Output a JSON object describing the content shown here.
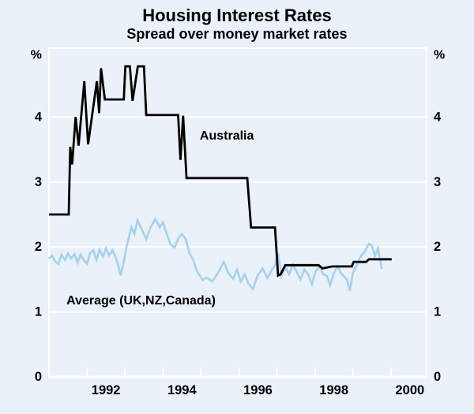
{
  "header": {
    "title": "Housing Interest Rates",
    "subtitle": "Spread over money market rates"
  },
  "chart_data": {
    "type": "line",
    "title": "Housing Interest Rates",
    "subtitle": "Spread over money market rates",
    "background_color": "#eaf1f8",
    "grid_color": "#ffffff",
    "x_range": [
      1991.0,
      2000.94
    ],
    "y_range": [
      0,
      5.06
    ],
    "y_unit_left": "%",
    "y_unit_right": "%",
    "y_tick_labels": [
      "4",
      "3",
      "2",
      "1",
      "0"
    ],
    "y_tick_values": [
      4,
      3,
      2,
      1,
      0
    ],
    "gridline_values": [
      4,
      3,
      2,
      1
    ],
    "x_tick_years": [
      1992,
      1993,
      1994,
      1995,
      1996,
      1997,
      1998,
      1999,
      2000
    ],
    "x_label_years": [
      "1992",
      "1994",
      "1996",
      "1998",
      "2000"
    ],
    "x_label_positions": [
      1992.5,
      1994.5,
      1996.5,
      1998.5,
      2000.5
    ],
    "legend_position": "in-plot-labels",
    "series": [
      {
        "name": "Australia",
        "color": "#000000",
        "width": 2.8,
        "points": [
          [
            1991.0,
            2.5
          ],
          [
            1991.52,
            2.5
          ],
          [
            1991.56,
            3.54
          ],
          [
            1991.61,
            3.27
          ],
          [
            1991.7,
            4.0
          ],
          [
            1991.78,
            3.56
          ],
          [
            1991.93,
            4.55
          ],
          [
            1992.03,
            3.58
          ],
          [
            1992.26,
            4.55
          ],
          [
            1992.32,
            4.06
          ],
          [
            1992.37,
            4.75
          ],
          [
            1992.47,
            4.27
          ],
          [
            1992.97,
            4.27
          ],
          [
            1993.01,
            4.78
          ],
          [
            1993.13,
            4.78
          ],
          [
            1993.2,
            4.25
          ],
          [
            1993.34,
            4.78
          ],
          [
            1993.5,
            4.78
          ],
          [
            1993.56,
            4.03
          ],
          [
            1994.4,
            4.03
          ],
          [
            1994.46,
            3.34
          ],
          [
            1994.53,
            4.02
          ],
          [
            1994.62,
            3.06
          ],
          [
            1996.22,
            3.06
          ],
          [
            1996.32,
            2.3
          ],
          [
            1996.95,
            2.3
          ],
          [
            1997.03,
            1.56
          ],
          [
            1997.1,
            1.58
          ],
          [
            1997.22,
            1.72
          ],
          [
            1998.1,
            1.72
          ],
          [
            1998.2,
            1.67
          ],
          [
            1998.45,
            1.7
          ],
          [
            1998.97,
            1.7
          ],
          [
            1999.02,
            1.77
          ],
          [
            1999.35,
            1.77
          ],
          [
            1999.42,
            1.81
          ],
          [
            2000.02,
            1.81
          ]
        ]
      },
      {
        "name": "Average (UK,NZ,Canada)",
        "color": "#a5d1ed",
        "width": 2.6,
        "points": [
          [
            1991.0,
            1.82
          ],
          [
            1991.08,
            1.87
          ],
          [
            1991.17,
            1.77
          ],
          [
            1991.25,
            1.74
          ],
          [
            1991.33,
            1.88
          ],
          [
            1991.42,
            1.8
          ],
          [
            1991.5,
            1.9
          ],
          [
            1991.58,
            1.82
          ],
          [
            1991.67,
            1.89
          ],
          [
            1991.75,
            1.76
          ],
          [
            1991.83,
            1.88
          ],
          [
            1991.92,
            1.8
          ],
          [
            1992.0,
            1.74
          ],
          [
            1992.08,
            1.9
          ],
          [
            1992.17,
            1.95
          ],
          [
            1992.25,
            1.8
          ],
          [
            1992.33,
            1.96
          ],
          [
            1992.42,
            1.85
          ],
          [
            1992.5,
            1.98
          ],
          [
            1992.58,
            1.87
          ],
          [
            1992.67,
            1.95
          ],
          [
            1992.75,
            1.85
          ],
          [
            1992.83,
            1.7
          ],
          [
            1992.88,
            1.56
          ],
          [
            1992.96,
            1.75
          ],
          [
            1993.04,
            2.0
          ],
          [
            1993.17,
            2.3
          ],
          [
            1993.25,
            2.2
          ],
          [
            1993.33,
            2.41
          ],
          [
            1993.42,
            2.3
          ],
          [
            1993.56,
            2.12
          ],
          [
            1993.67,
            2.3
          ],
          [
            1993.8,
            2.43
          ],
          [
            1993.92,
            2.3
          ],
          [
            1994.0,
            2.38
          ],
          [
            1994.1,
            2.2
          ],
          [
            1994.2,
            2.04
          ],
          [
            1994.3,
            1.99
          ],
          [
            1994.42,
            2.15
          ],
          [
            1994.5,
            2.2
          ],
          [
            1994.6,
            2.12
          ],
          [
            1994.7,
            1.9
          ],
          [
            1994.8,
            1.8
          ],
          [
            1994.9,
            1.62
          ],
          [
            1995.05,
            1.49
          ],
          [
            1995.15,
            1.53
          ],
          [
            1995.3,
            1.47
          ],
          [
            1995.45,
            1.6
          ],
          [
            1995.6,
            1.77
          ],
          [
            1995.72,
            1.6
          ],
          [
            1995.85,
            1.51
          ],
          [
            1995.95,
            1.65
          ],
          [
            1996.05,
            1.47
          ],
          [
            1996.15,
            1.58
          ],
          [
            1996.25,
            1.44
          ],
          [
            1996.37,
            1.35
          ],
          [
            1996.5,
            1.57
          ],
          [
            1996.62,
            1.67
          ],
          [
            1996.75,
            1.52
          ],
          [
            1996.87,
            1.65
          ],
          [
            1996.95,
            1.71
          ],
          [
            1997.03,
            1.9
          ],
          [
            1997.12,
            1.55
          ],
          [
            1997.22,
            1.7
          ],
          [
            1997.32,
            1.58
          ],
          [
            1997.42,
            1.73
          ],
          [
            1997.52,
            1.62
          ],
          [
            1997.62,
            1.5
          ],
          [
            1997.72,
            1.65
          ],
          [
            1997.82,
            1.58
          ],
          [
            1997.92,
            1.43
          ],
          [
            1998.02,
            1.63
          ],
          [
            1998.12,
            1.7
          ],
          [
            1998.22,
            1.58
          ],
          [
            1998.32,
            1.55
          ],
          [
            1998.4,
            1.41
          ],
          [
            1998.5,
            1.6
          ],
          [
            1998.6,
            1.7
          ],
          [
            1998.68,
            1.6
          ],
          [
            1998.76,
            1.55
          ],
          [
            1998.84,
            1.5
          ],
          [
            1998.92,
            1.33
          ],
          [
            1999.0,
            1.6
          ],
          [
            1999.1,
            1.72
          ],
          [
            1999.2,
            1.85
          ],
          [
            1999.3,
            1.92
          ],
          [
            1999.42,
            2.05
          ],
          [
            1999.5,
            2.02
          ],
          [
            1999.58,
            1.86
          ],
          [
            1999.66,
            1.98
          ],
          [
            1999.76,
            1.66
          ]
        ]
      }
    ],
    "annotations": [
      {
        "text": "Australia",
        "year": 1994.97,
        "value": 3.71,
        "anchor": "start"
      },
      {
        "text": "Average (UK,NZ,Canada)",
        "year": 1991.46,
        "value": 1.17,
        "anchor": "start"
      }
    ]
  }
}
